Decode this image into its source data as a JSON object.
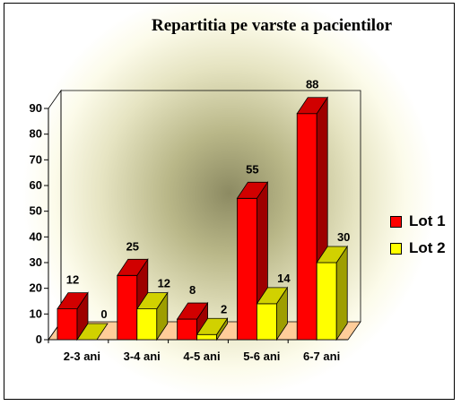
{
  "chart_data": {
    "type": "bar",
    "title": "Repartitia pe varste a pacientilor",
    "categories": [
      "2-3 ani",
      "3-4 ani",
      "4-5 ani",
      "5-6 ani",
      "6-7 ani"
    ],
    "series": [
      {
        "name": "Lot 1",
        "values": [
          12,
          25,
          8,
          55,
          88
        ],
        "color": "#ff0000"
      },
      {
        "name": "Lot 2",
        "values": [
          0,
          12,
          2,
          14,
          30
        ],
        "color": "#ffff00"
      }
    ],
    "ylim": [
      0,
      90
    ],
    "yticks": [
      0,
      10,
      20,
      30,
      40,
      50,
      60,
      70,
      80,
      90
    ],
    "grid": false,
    "legend": "right",
    "floor_color": "#ffcc99"
  }
}
